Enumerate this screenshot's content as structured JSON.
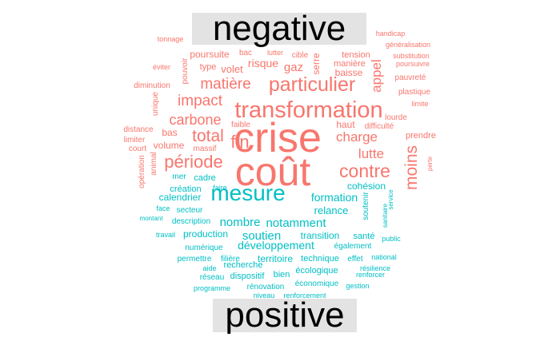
{
  "chart_data": {
    "type": "wordcloud",
    "colors": {
      "negative": "#f8766d",
      "positive": "#00bfc4"
    },
    "groups": [
      {
        "name": "negative",
        "color": "#f8766d",
        "words": [
          {
            "text": "crise",
            "weight": 10
          },
          {
            "text": "coût",
            "weight": 10
          },
          {
            "text": "transformation",
            "weight": 7
          },
          {
            "text": "particulier",
            "weight": 6
          },
          {
            "text": "contre",
            "weight": 5.5
          },
          {
            "text": "moins",
            "weight": 5
          },
          {
            "text": "période",
            "weight": 5
          },
          {
            "text": "total",
            "weight": 5
          },
          {
            "text": "fin",
            "weight": 5
          },
          {
            "text": "matière",
            "weight": 4.5
          },
          {
            "text": "impact",
            "weight": 4.5
          },
          {
            "text": "carbone",
            "weight": 4.5
          },
          {
            "text": "charge",
            "weight": 4
          },
          {
            "text": "lutte",
            "weight": 4
          },
          {
            "text": "appel",
            "weight": 4
          },
          {
            "text": "gaz",
            "weight": 3.5
          },
          {
            "text": "risque",
            "weight": 3
          },
          {
            "text": "volet",
            "weight": 3
          },
          {
            "text": "poursuite",
            "weight": 2.5
          },
          {
            "text": "haut",
            "weight": 2.5
          },
          {
            "text": "bas",
            "weight": 2.5
          },
          {
            "text": "serre",
            "weight": 2.5
          },
          {
            "text": "baisse",
            "weight": 2.5
          },
          {
            "text": "volume",
            "weight": 2.5
          },
          {
            "text": "tension",
            "weight": 2.5
          },
          {
            "text": "manière",
            "weight": 2
          },
          {
            "text": "pouvoir",
            "weight": 2
          },
          {
            "text": "type",
            "weight": 2
          },
          {
            "text": "bac",
            "weight": 1.5
          },
          {
            "text": "cible",
            "weight": 1.5
          },
          {
            "text": "lutter",
            "weight": 1.5
          },
          {
            "text": "difficulté",
            "weight": 2
          },
          {
            "text": "prendre",
            "weight": 2
          },
          {
            "text": "lourde",
            "weight": 2
          },
          {
            "text": "pauvreté",
            "weight": 2
          },
          {
            "text": "plastique",
            "weight": 2
          },
          {
            "text": "distance",
            "weight": 2
          },
          {
            "text": "limiter",
            "weight": 2
          },
          {
            "text": "court",
            "weight": 2
          },
          {
            "text": "diminution",
            "weight": 2
          },
          {
            "text": "unique",
            "weight": 2
          },
          {
            "text": "faible",
            "weight": 2
          },
          {
            "text": "massif",
            "weight": 2
          },
          {
            "text": "animal",
            "weight": 2
          },
          {
            "text": "opération",
            "weight": 2
          },
          {
            "text": "handicap",
            "weight": 1.5
          },
          {
            "text": "généralisation",
            "weight": 1.5
          },
          {
            "text": "substitution",
            "weight": 1.5
          },
          {
            "text": "poursuivre",
            "weight": 1.5
          },
          {
            "text": "tonnage",
            "weight": 1.5
          },
          {
            "text": "éviter",
            "weight": 1.5
          },
          {
            "text": "limite",
            "weight": 1.5
          },
          {
            "text": "perte",
            "weight": 1.5
          }
        ]
      },
      {
        "name": "positive",
        "color": "#00bfc4",
        "words": [
          {
            "text": "mesure",
            "weight": 7
          },
          {
            "text": "soutien",
            "weight": 4
          },
          {
            "text": "nombre",
            "weight": 4
          },
          {
            "text": "notamment",
            "weight": 4
          },
          {
            "text": "développement",
            "weight": 4
          },
          {
            "text": "formation",
            "weight": 3.5
          },
          {
            "text": "relance",
            "weight": 3.5
          },
          {
            "text": "cohésion",
            "weight": 3
          },
          {
            "text": "transition",
            "weight": 3
          },
          {
            "text": "production",
            "weight": 3
          },
          {
            "text": "territoire",
            "weight": 3
          },
          {
            "text": "calendrier",
            "weight": 2.5
          },
          {
            "text": "création",
            "weight": 2.5
          },
          {
            "text": "cadre",
            "weight": 2.5
          },
          {
            "text": "mer",
            "weight": 2
          },
          {
            "text": "faire",
            "weight": 2
          },
          {
            "text": "secteur",
            "weight": 2
          },
          {
            "text": "face",
            "weight": 2
          },
          {
            "text": "montant",
            "weight": 1.5
          },
          {
            "text": "description",
            "weight": 2
          },
          {
            "text": "travail",
            "weight": 2
          },
          {
            "text": "numérique",
            "weight": 2
          },
          {
            "text": "permettre",
            "weight": 2
          },
          {
            "text": "filière",
            "weight": 2
          },
          {
            "text": "technique",
            "weight": 2.5
          },
          {
            "text": "effet",
            "weight": 2
          },
          {
            "text": "santé",
            "weight": 2.5
          },
          {
            "text": "également",
            "weight": 2
          },
          {
            "text": "soutenir",
            "weight": 2
          },
          {
            "text": "service",
            "weight": 1.5
          },
          {
            "text": "sanitaire",
            "weight": 1.5
          },
          {
            "text": "public",
            "weight": 1.5
          },
          {
            "text": "national",
            "weight": 1.5
          },
          {
            "text": "résilience",
            "weight": 1.5
          },
          {
            "text": "renforcer",
            "weight": 1.5
          },
          {
            "text": "recherche",
            "weight": 2
          },
          {
            "text": "aide",
            "weight": 1.5
          },
          {
            "text": "réseau",
            "weight": 2
          },
          {
            "text": "dispositif",
            "weight": 2.5
          },
          {
            "text": "bien",
            "weight": 2
          },
          {
            "text": "écologique",
            "weight": 2.5
          },
          {
            "text": "programme",
            "weight": 2
          },
          {
            "text": "rénovation",
            "weight": 2
          },
          {
            "text": "économique",
            "weight": 2
          },
          {
            "text": "gestion",
            "weight": 2
          },
          {
            "text": "niveau",
            "weight": 1.5
          },
          {
            "text": "renforcement",
            "weight": 1.5
          }
        ]
      }
    ]
  }
}
